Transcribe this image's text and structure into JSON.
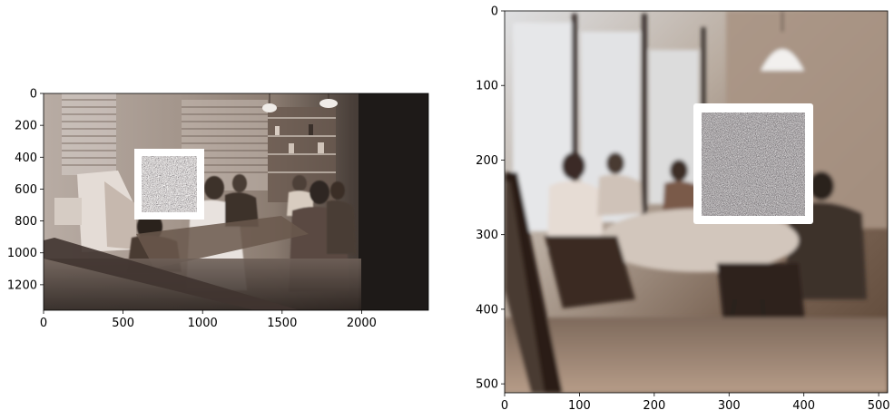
{
  "chart_data": [
    {
      "type": "image",
      "xlim": [
        0,
        2420
      ],
      "ylim": [
        1360,
        0
      ],
      "xticks": [
        0,
        500,
        1000,
        1500,
        2000
      ],
      "yticks": [
        0,
        200,
        400,
        600,
        800,
        1000,
        1200
      ],
      "xtick_labels": [
        "0",
        "500",
        "1000",
        "1500",
        "2000"
      ],
      "ytick_labels": [
        "0",
        "200",
        "400",
        "600",
        "800",
        "1000",
        "1200"
      ],
      "overlay": {
        "type": "noise-patch-with-white-border",
        "x": [
          600,
          1030
        ],
        "y": [
          360,
          790
        ]
      }
    },
    {
      "type": "image",
      "xlim": [
        0,
        512
      ],
      "ylim": [
        512,
        0
      ],
      "xticks": [
        0,
        100,
        200,
        300,
        400,
        500
      ],
      "yticks": [
        0,
        100,
        200,
        300,
        400,
        500
      ],
      "xtick_labels": [
        "0",
        "100",
        "200",
        "300",
        "400",
        "500"
      ],
      "ytick_labels": [
        "0",
        "100",
        "200",
        "300",
        "400",
        "500"
      ],
      "overlay": {
        "type": "noise-patch-with-white-border",
        "x": [
          255,
          413
        ],
        "y": [
          125,
          285
        ]
      }
    }
  ],
  "colors": {
    "left_photo_base": "#9a8e86",
    "left_dark_right": "#201c1a",
    "right_photo_base": "#8a7766",
    "patch_border": "#ffffff",
    "patch_noise_dark": "#1a1416",
    "patch_noise_light": "#e9e0dc"
  }
}
